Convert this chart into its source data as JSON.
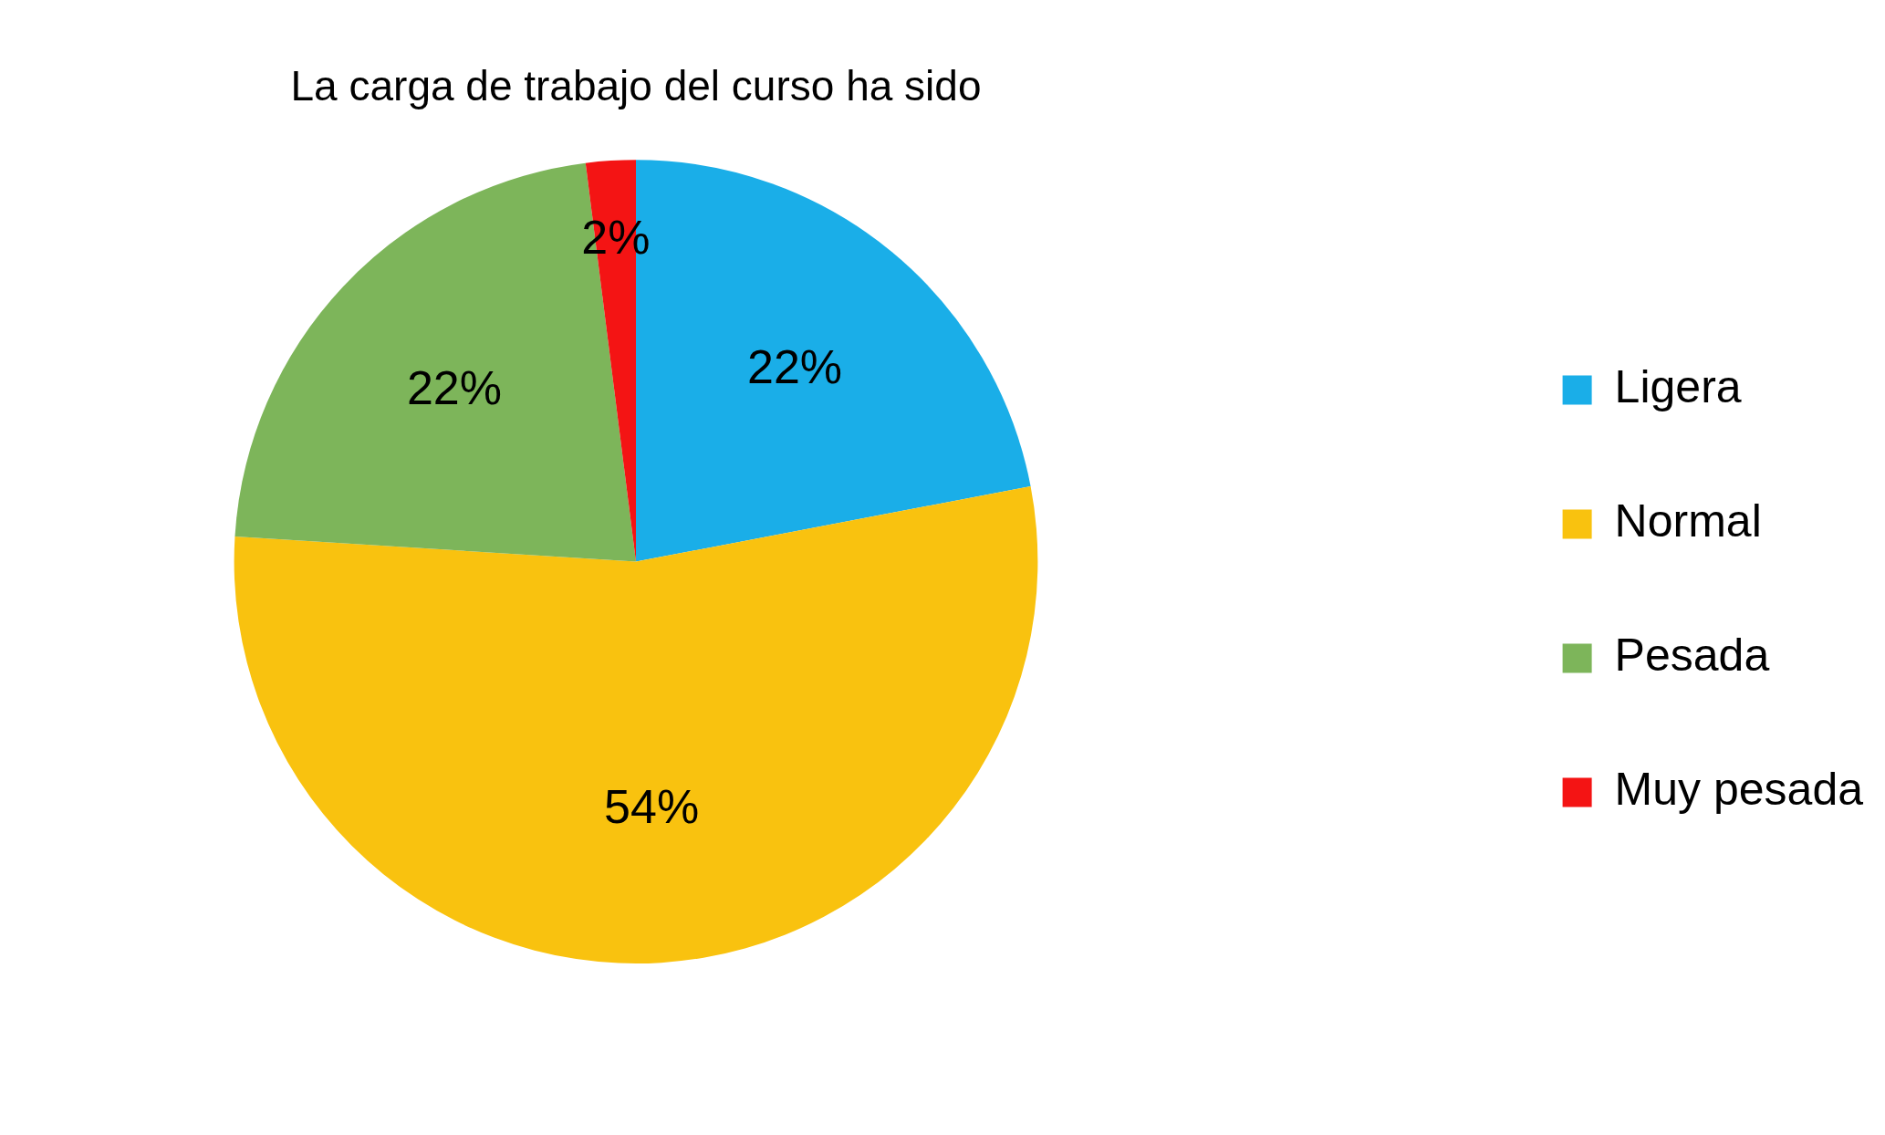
{
  "chart_data": {
    "type": "pie",
    "title": "La carga de trabajo del curso ha sido",
    "categories": [
      "Ligera",
      "Normal",
      "Pesada",
      "Muy pesada"
    ],
    "values": [
      22,
      54,
      22,
      2
    ],
    "colors": [
      "#1aaee8",
      "#f9c20f",
      "#7db55a",
      "#f41414"
    ],
    "value_labels": [
      "22%",
      "54%",
      "22%",
      "2%"
    ],
    "legend": "right"
  }
}
